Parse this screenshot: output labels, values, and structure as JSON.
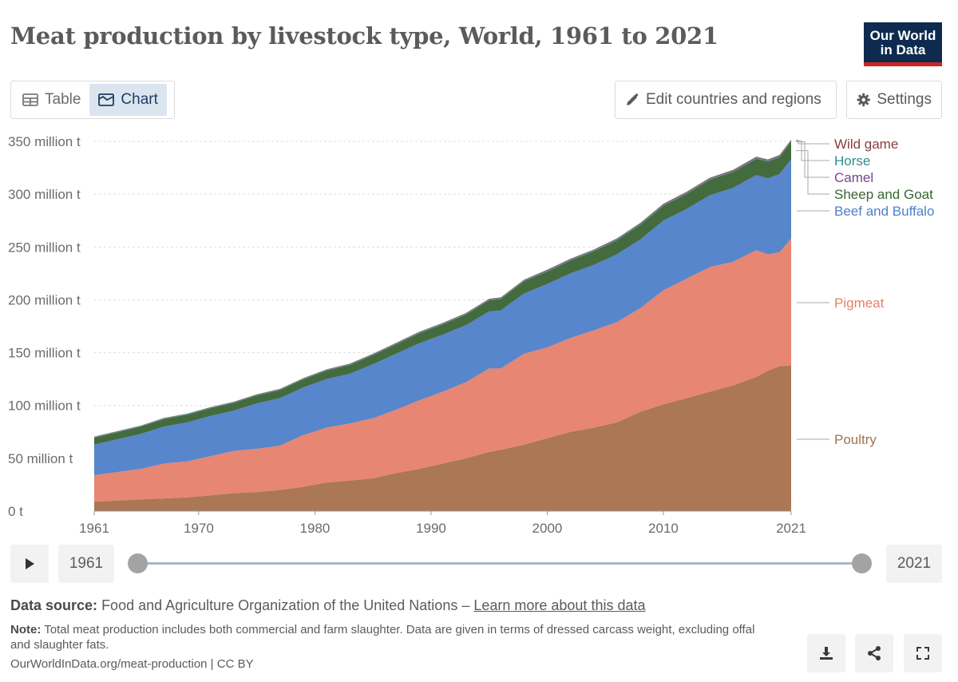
{
  "header": {
    "title": "Meat production by livestock type, World, 1961 to 2021",
    "logo_line1": "Our World",
    "logo_line2": "in Data"
  },
  "toolbar": {
    "table_label": "Table",
    "chart_label": "Chart",
    "edit_label": "Edit countries and regions",
    "settings_label": "Settings"
  },
  "timeline": {
    "start_year": "1961",
    "end_year": "2021"
  },
  "footer": {
    "source_label": "Data source:",
    "source_text": "Food and Agriculture Organization of the United Nations – ",
    "source_link": "Learn more about this data",
    "note_label": "Note:",
    "note_text": " Total meat production includes both commercial and farm slaughter. Data are given in terms of dressed carcass weight, excluding offal and slaughter fats.",
    "url": "OurWorldInData.org/meat-production | CC BY"
  },
  "colors": {
    "poultry": "#a6704c",
    "pigmeat": "#e5806c",
    "beef": "#4e80c9",
    "sheep": "#3a6334",
    "camel": "#7a4594",
    "horse": "#2f8c8c",
    "wild": "#8a3c3c"
  },
  "chart_data": {
    "type": "area",
    "stacked": true,
    "title": "Meat production by livestock type, World, 1961 to 2021",
    "unit": "t",
    "ylim": [
      0,
      350000000
    ],
    "y_ticks": [
      {
        "value": 0,
        "label": "0 t"
      },
      {
        "value": 50000000,
        "label": "50 million t"
      },
      {
        "value": 100000000,
        "label": "100 million t"
      },
      {
        "value": 150000000,
        "label": "150 million t"
      },
      {
        "value": 200000000,
        "label": "200 million t"
      },
      {
        "value": 250000000,
        "label": "250 million t"
      },
      {
        "value": 300000000,
        "label": "300 million t"
      },
      {
        "value": 350000000,
        "label": "350 million t"
      }
    ],
    "x_ticks": [
      "1961",
      "1970",
      "1980",
      "1990",
      "2000",
      "2010",
      "2021"
    ],
    "x": [
      1961,
      1963,
      1965,
      1967,
      1969,
      1971,
      1973,
      1975,
      1977,
      1979,
      1981,
      1983,
      1985,
      1987,
      1989,
      1991,
      1993,
      1995,
      1996,
      1998,
      2000,
      2002,
      2004,
      2006,
      2008,
      2010,
      2012,
      2014,
      2016,
      2018,
      2019,
      2020,
      2021
    ],
    "series": [
      {
        "name": "Poultry",
        "values": [
          9,
          10,
          11,
          12,
          13,
          15,
          17,
          18,
          20,
          23,
          27,
          29,
          31,
          36,
          40,
          45,
          50,
          56,
          58,
          63,
          69,
          75,
          79,
          84,
          94,
          101,
          107,
          113,
          119,
          127,
          133,
          137,
          138
        ]
      },
      {
        "name": "Pigmeat",
        "values": [
          25,
          27,
          29,
          33,
          34,
          37,
          40,
          41,
          42,
          49,
          52,
          54,
          57,
          60,
          65,
          68,
          72,
          79,
          77,
          86,
          86,
          89,
          92,
          95,
          98,
          108,
          113,
          118,
          117,
          120,
          110,
          108,
          120
        ]
      },
      {
        "name": "Beef and Buffalo",
        "values": [
          29,
          31,
          33,
          35,
          37,
          38,
          38,
          43,
          45,
          45,
          46,
          47,
          51,
          53,
          54,
          54,
          54,
          54,
          55,
          57,
          60,
          61,
          62,
          64,
          65,
          66,
          66,
          68,
          70,
          71,
          72,
          74,
          75
        ]
      },
      {
        "name": "Sheep and Goat",
        "values": [
          6.5,
          6.7,
          6.9,
          7.1,
          7.2,
          7.3,
          7.4,
          7.5,
          7.6,
          7.7,
          8.0,
          8.3,
          8.6,
          9.0,
          9.4,
          9.7,
          10.0,
          10.5,
          10.8,
          11.5,
          11.8,
          12.2,
          12.8,
          13.4,
          13.9,
          14.0,
          14.3,
          14.6,
          15.0,
          15.4,
          15.8,
          16.0,
          16.4
        ]
      },
      {
        "name": "Camel",
        "values": [
          0.12,
          0.13,
          0.14,
          0.15,
          0.15,
          0.16,
          0.17,
          0.18,
          0.19,
          0.2,
          0.21,
          0.23,
          0.25,
          0.26,
          0.27,
          0.29,
          0.3,
          0.3,
          0.3,
          0.31,
          0.32,
          0.33,
          0.34,
          0.35,
          0.36,
          0.37,
          0.38,
          0.39,
          0.4,
          0.41,
          0.42,
          0.43,
          0.44
        ]
      },
      {
        "name": "Horse",
        "values": [
          0.55,
          0.55,
          0.56,
          0.56,
          0.57,
          0.57,
          0.58,
          0.58,
          0.59,
          0.6,
          0.6,
          0.61,
          0.62,
          0.63,
          0.64,
          0.65,
          0.66,
          0.67,
          0.68,
          0.7,
          0.72,
          0.74,
          0.76,
          0.78,
          0.8,
          0.8,
          0.82,
          0.84,
          0.84,
          0.85,
          0.86,
          0.87,
          0.88
        ]
      },
      {
        "name": "Wild game",
        "values": [
          0.3,
          0.3,
          0.3,
          0.3,
          0.3,
          0.32,
          0.33,
          0.34,
          0.35,
          0.36,
          0.38,
          0.4,
          0.42,
          0.44,
          0.46,
          0.48,
          0.5,
          0.52,
          0.54,
          0.56,
          0.58,
          0.6,
          0.62,
          0.64,
          0.66,
          0.68,
          0.7,
          0.72,
          0.74,
          0.76,
          0.78,
          0.8,
          0.82
        ]
      }
    ],
    "series_unit_note": "values in million tonnes",
    "legend": [
      "Wild game",
      "Horse",
      "Camel",
      "Sheep and Goat",
      "Beef and Buffalo",
      "Pigmeat",
      "Poultry"
    ]
  }
}
